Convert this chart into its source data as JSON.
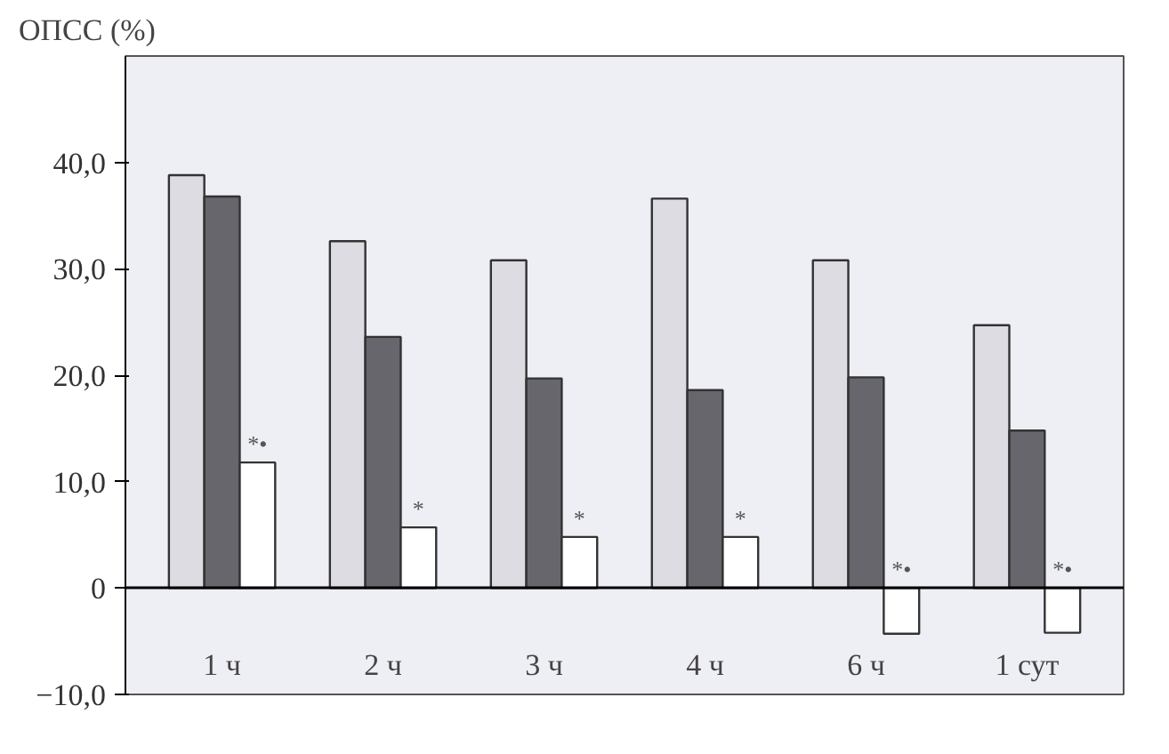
{
  "chart_data": {
    "type": "bar",
    "ylabel": "ОПСС (%)",
    "categories": [
      "1 ч",
      "2 ч",
      "3 ч",
      "4 ч",
      "6 ч",
      "1 сут"
    ],
    "series": [
      {
        "color": "#dcdce2",
        "values": [
          38.8,
          32.6,
          30.8,
          36.6,
          30.8,
          24.7
        ]
      },
      {
        "color": "#66666c",
        "values": [
          36.8,
          23.6,
          19.7,
          18.6,
          19.8,
          14.8
        ]
      },
      {
        "color": "#ffffff",
        "values": [
          11.8,
          5.7,
          4.8,
          4.8,
          -4.3,
          -4.2
        ],
        "value_labels": [
          "*•",
          "*",
          "*",
          "*",
          "*•",
          "*•"
        ]
      }
    ],
    "ylim": [
      -10,
      50
    ],
    "yticks": [
      {
        "value": -10,
        "label": "−10,0"
      },
      0,
      {
        "value": 10,
        "label": "10,0"
      },
      {
        "value": 20,
        "label": "20,0"
      },
      {
        "value": 30,
        "label": "30,0"
      },
      {
        "value": 40,
        "label": "40,0"
      }
    ]
  }
}
